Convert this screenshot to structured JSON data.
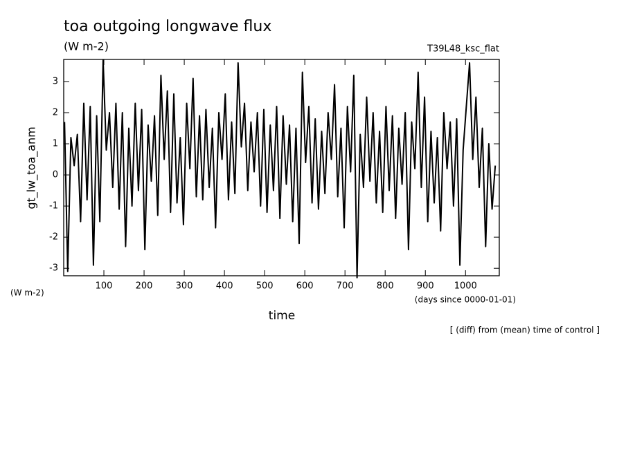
{
  "chart_data": {
    "type": "line",
    "title": "toa outgoing longwave flux",
    "subtitle": "(W m-2)",
    "run_label": "T39L48_ksc_flat",
    "y_label": "gt_lw_toa_anm",
    "y_units": "(W m-2)",
    "x_label": "time",
    "x_units": "(days since 0000-01-01)",
    "note": "[ (diff) from (mean) time of control ]",
    "xlim": [
      0,
      1084
    ],
    "ylim": [
      -3.24,
      3.71
    ],
    "xticks": [
      100,
      200,
      300,
      400,
      500,
      600,
      700,
      800,
      900,
      1000
    ],
    "yticks": [
      -3,
      -2,
      -1,
      0,
      1,
      2,
      3
    ],
    "series": [
      {
        "color": "#000000",
        "x": [
          2,
          10,
          18,
          26,
          34,
          42,
          50,
          58,
          66,
          74,
          82,
          90,
          98,
          106,
          114,
          122,
          130,
          138,
          146,
          154,
          162,
          170,
          178,
          186,
          194,
          202,
          210,
          218,
          226,
          234,
          242,
          250,
          258,
          266,
          274,
          282,
          290,
          298,
          306,
          314,
          322,
          330,
          338,
          346,
          354,
          362,
          370,
          378,
          386,
          394,
          402,
          410,
          418,
          426,
          434,
          442,
          450,
          458,
          466,
          474,
          482,
          490,
          498,
          506,
          514,
          522,
          530,
          538,
          546,
          554,
          562,
          570,
          578,
          586,
          594,
          602,
          610,
          618,
          626,
          634,
          642,
          650,
          658,
          666,
          674,
          682,
          690,
          698,
          706,
          714,
          722,
          730,
          738,
          746,
          754,
          762,
          770,
          778,
          786,
          794,
          802,
          810,
          818,
          826,
          834,
          842,
          850,
          858,
          866,
          874,
          882,
          890,
          898,
          906,
          914,
          922,
          930,
          938,
          946,
          954,
          962,
          970,
          978,
          986,
          994,
          1002,
          1010,
          1018,
          1026,
          1034,
          1042,
          1050,
          1058,
          1066,
          1074
        ],
        "values": [
          1.7,
          -3.1,
          1.2,
          0.3,
          1.3,
          -1.5,
          2.3,
          -0.8,
          2.2,
          -2.9,
          1.9,
          -1.5,
          3.7,
          0.8,
          2.0,
          -0.4,
          2.3,
          -1.1,
          2.0,
          -2.3,
          1.5,
          -1.0,
          2.3,
          -0.5,
          2.1,
          -2.4,
          1.6,
          -0.2,
          1.9,
          -1.3,
          3.2,
          0.5,
          2.7,
          -1.2,
          2.6,
          -0.9,
          1.2,
          -1.6,
          2.3,
          0.2,
          3.1,
          -0.7,
          1.9,
          -0.8,
          2.1,
          -0.4,
          1.5,
          -1.7,
          2.0,
          0.5,
          2.6,
          -0.8,
          1.7,
          -0.6,
          3.6,
          0.9,
          2.3,
          -0.5,
          1.7,
          0.1,
          2.0,
          -1.0,
          2.1,
          -1.2,
          1.6,
          -0.5,
          2.2,
          -1.4,
          1.9,
          -0.3,
          1.6,
          -1.5,
          1.5,
          -2.2,
          3.3,
          0.4,
          2.2,
          -0.9,
          1.8,
          -1.1,
          1.4,
          -0.6,
          2.0,
          0.5,
          2.9,
          -0.7,
          1.5,
          -1.7,
          2.2,
          0.1,
          3.2,
          -3.3,
          1.3,
          -0.4,
          2.5,
          -0.2,
          2.0,
          -0.9,
          1.4,
          -1.2,
          2.2,
          -0.5,
          1.9,
          -1.4,
          1.5,
          -0.3,
          2.0,
          -2.4,
          1.7,
          0.2,
          3.3,
          -0.4,
          2.5,
          -1.5,
          1.4,
          -0.9,
          1.2,
          -1.8,
          2.0,
          0.2,
          1.7,
          -1.0,
          1.8,
          -2.9,
          0.8,
          2.2,
          3.6,
          0.5,
          2.5,
          -0.4,
          1.5,
          -2.3,
          1.0,
          -1.1,
          0.3
        ]
      }
    ]
  }
}
